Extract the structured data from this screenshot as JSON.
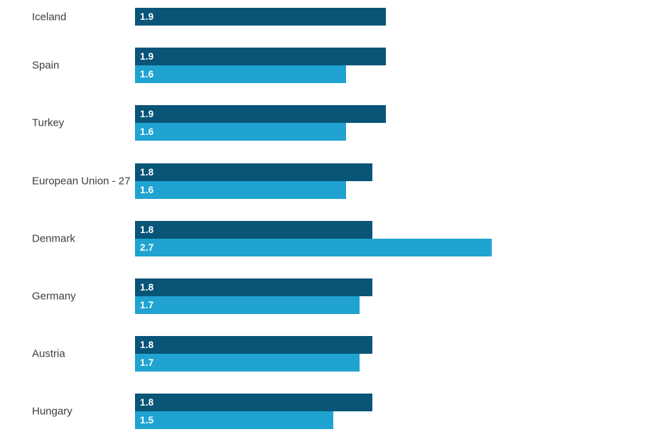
{
  "chart_data": {
    "type": "bar",
    "orientation": "horizontal",
    "title": "",
    "xlabel": "",
    "ylabel": "",
    "axes_visible": false,
    "grid": false,
    "legend": null,
    "value_labels_shown": true,
    "xlim": [
      0,
      3
    ],
    "series": [
      {
        "id": "dark",
        "color": "#085578"
      },
      {
        "id": "light",
        "color": "#20a3d0"
      }
    ],
    "categories": [
      "Iceland",
      "Spain",
      "Turkey",
      "European Union - 27",
      "Denmark",
      "Germany",
      "Austria",
      "Hungary"
    ],
    "rows": [
      {
        "country": "Iceland",
        "dark": 1.9,
        "light": null
      },
      {
        "country": "Spain",
        "dark": 1.9,
        "light": 1.6
      },
      {
        "country": "Turkey",
        "dark": 1.9,
        "light": 1.6
      },
      {
        "country": "European Union - 27",
        "dark": 1.8,
        "light": 1.6
      },
      {
        "country": "Denmark",
        "dark": 1.8,
        "light": 2.7
      },
      {
        "country": "Germany",
        "dark": 1.8,
        "light": 1.7
      },
      {
        "country": "Austria",
        "dark": 1.8,
        "light": 1.7
      },
      {
        "country": "Hungary",
        "dark": 1.8,
        "light": 1.5
      }
    ]
  },
  "colors": {
    "background": "#ffffff",
    "category_label_text": "#3d3d3d",
    "value_label_text": "#ffffff"
  }
}
